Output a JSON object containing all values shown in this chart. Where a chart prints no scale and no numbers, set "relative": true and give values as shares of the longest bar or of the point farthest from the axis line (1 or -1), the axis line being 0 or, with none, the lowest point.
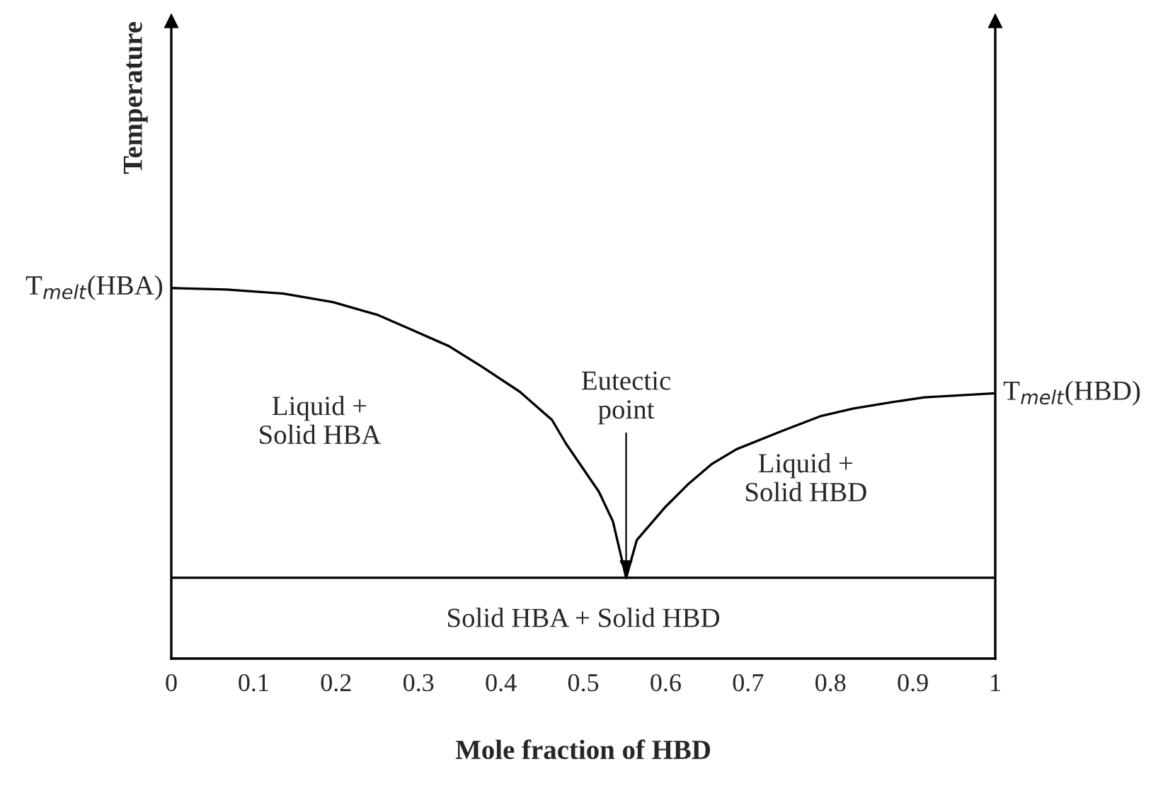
{
  "chart_data": {
    "type": "line",
    "relative": true,
    "xlabel": "Mole fraction of HBD",
    "ylabel": "Temperature",
    "xlim": [
      0,
      1
    ],
    "xticks": [
      0,
      0.1,
      0.2,
      0.3,
      0.4,
      0.5,
      0.6,
      0.7,
      0.8,
      0.9,
      1
    ],
    "tick_labels": "x",
    "series": [
      {
        "color": "#000000",
        "x": [
          0,
          0.067,
          0.136,
          0.196,
          0.251,
          0.29,
          0.337,
          0.376,
          0.423,
          0.462,
          0.479,
          0.519,
          0.536,
          0.552
        ],
        "values": [
          1,
          0.996,
          0.985,
          0.962,
          0.927,
          0.889,
          0.843,
          0.789,
          0.72,
          0.644,
          0.58,
          0.45,
          0.37,
          0.218
        ]
      },
      {
        "color": "#000000",
        "x": [
          0.552,
          0.565,
          0.6,
          0.627,
          0.656,
          0.686,
          0.742,
          0.789,
          0.828,
          0.875,
          0.914,
          1
        ],
        "values": [
          0.218,
          0.32,
          0.41,
          0.47,
          0.525,
          0.565,
          0.615,
          0.655,
          0.675,
          0.692,
          0.705,
          0.716
        ]
      },
      {
        "color": "#000000",
        "x": [
          0,
          1
        ],
        "values": [
          0.218,
          0.218
        ]
      }
    ],
    "annotations": [
      {
        "text": "T$_{melt}$(HBA)",
        "x": 0,
        "y": 1
      },
      {
        "text": "T$_{melt}$(HBD)",
        "x": 1,
        "y": 0.716
      },
      {
        "text": "Eutectic\npoint",
        "x": 0.552,
        "y": 0.218
      },
      "Liquid +\nSolid HBA",
      "Liquid +\nSolid HBD",
      "Solid HBA + Solid HBD"
    ]
  }
}
